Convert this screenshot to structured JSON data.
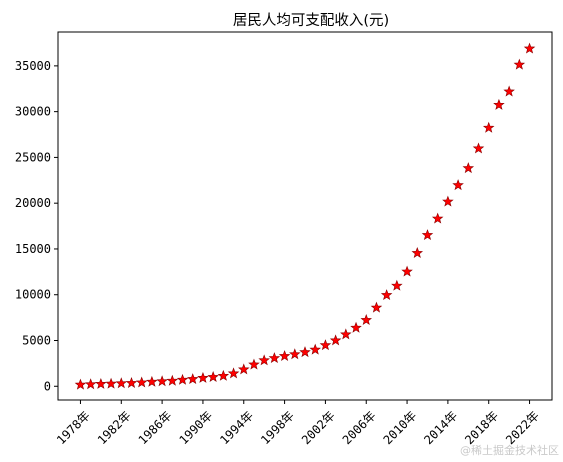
{
  "chart_data": {
    "type": "scatter",
    "title": "居民人均可支配收入(元)",
    "xlabel": "",
    "ylabel": "",
    "marker": "star",
    "marker_color": "#ff0000",
    "marker_edge_color": "#8b0000",
    "x": [
      "1978年",
      "1979年",
      "1980年",
      "1981年",
      "1982年",
      "1983年",
      "1984年",
      "1985年",
      "1986年",
      "1987年",
      "1988年",
      "1989年",
      "1990年",
      "1991年",
      "1992年",
      "1993年",
      "1994年",
      "1995年",
      "1996年",
      "1997年",
      "1998年",
      "1999年",
      "2000年",
      "2001年",
      "2002年",
      "2003年",
      "2004年",
      "2005年",
      "2006年",
      "2007年",
      "2008年",
      "2009年",
      "2010年",
      "2011年",
      "2012年",
      "2013年",
      "2014年",
      "2015年",
      "2016年",
      "2017年",
      "2018年",
      "2019年",
      "2020年",
      "2021年",
      "2022年"
    ],
    "values": [
      171,
      212,
      247,
      275,
      318,
      348,
      407,
      478,
      537,
      592,
      698,
      780,
      904,
      1004,
      1131,
      1398,
      1837,
      2364,
      2828,
      3070,
      3295,
      3488,
      3721,
      3995,
      4482,
      5007,
      5661,
      6385,
      7229,
      8584,
      9957,
      10977,
      12520,
      14551,
      16510,
      18311,
      20167,
      21966,
      23821,
      25974,
      28228,
      30733,
      32189,
      35128,
      36883
    ],
    "x_tick_labels": [
      "1978年",
      "1982年",
      "1986年",
      "1990年",
      "1994年",
      "1998年",
      "2002年",
      "2006年",
      "2010年",
      "2014年",
      "2018年",
      "2022年"
    ],
    "y_ticks": [
      0,
      5000,
      10000,
      15000,
      20000,
      25000,
      30000,
      35000
    ],
    "ylim": [
      -1500,
      38700
    ],
    "grid": false
  },
  "watermark": "@稀土掘金技术社区"
}
